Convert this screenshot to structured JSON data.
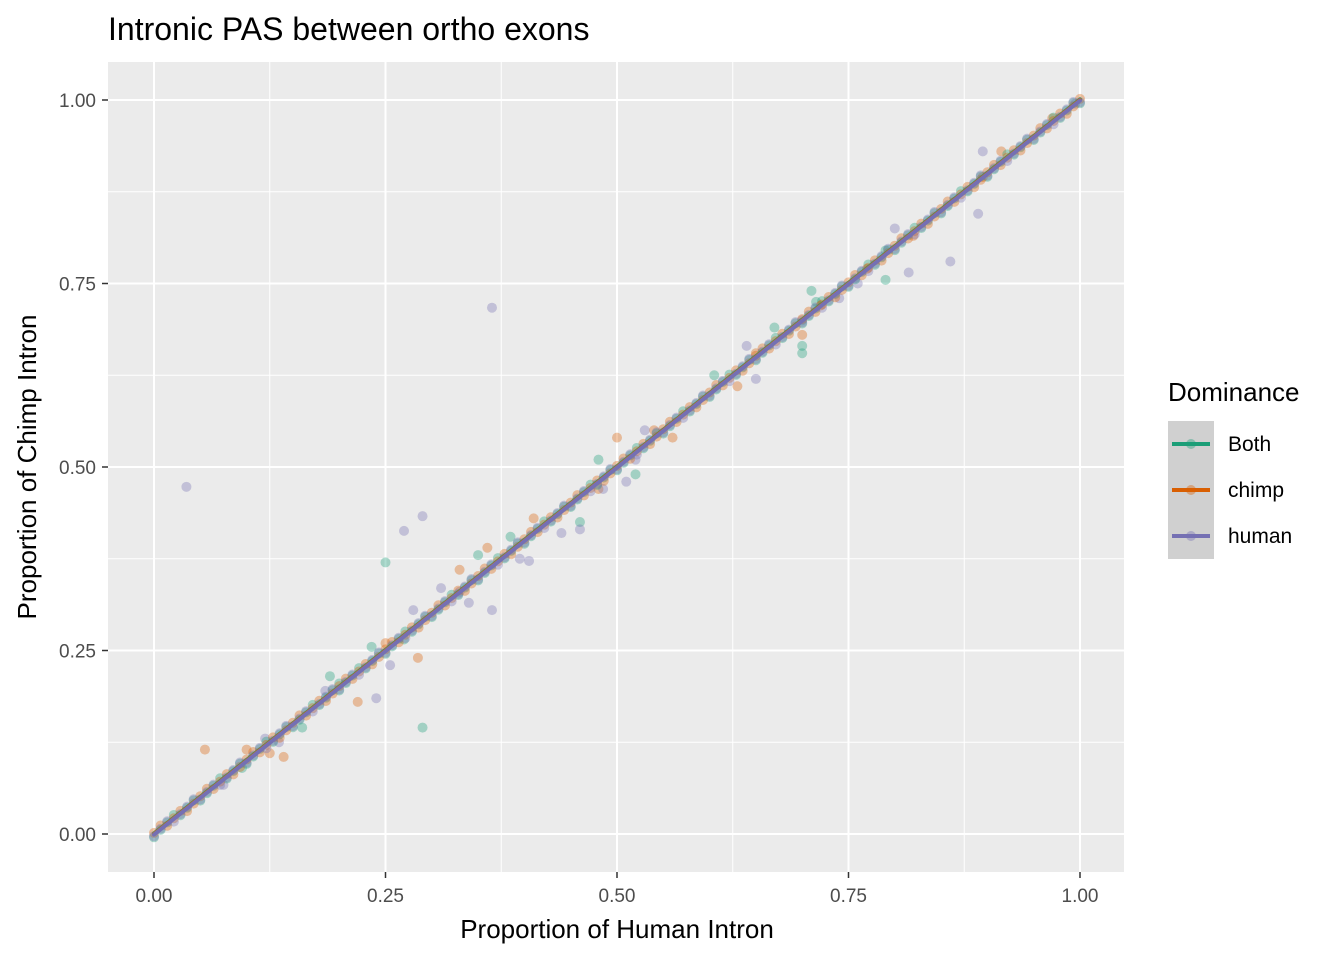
{
  "chart_data": {
    "type": "scatter",
    "title": "Intronic PAS between ortho exons",
    "xlabel": "Proportion of Human Intron",
    "ylabel": "Proportion of Chimp Intron",
    "xlim": [
      -0.1,
      1.1
    ],
    "ylim": [
      -0.05,
      1.05
    ],
    "xticks": [
      0,
      0.25,
      0.5,
      0.75,
      1
    ],
    "yticks": [
      0,
      0.25,
      0.5,
      0.75,
      1
    ],
    "xtick_labels": [
      "0.00",
      "0.25",
      "0.50",
      "0.75",
      "1.00"
    ],
    "ytick_labels": [
      "0.00",
      "0.25",
      "0.50",
      "0.75",
      "1.00"
    ],
    "grid": true,
    "legend": {
      "title": "Dominance",
      "position": "right",
      "entries": [
        "Both",
        "chimp",
        "human"
      ]
    },
    "series": [
      {
        "name": "Both",
        "color": "#1B9E77",
        "fit_line": {
          "x": [
            0,
            1
          ],
          "y": [
            0,
            1
          ]
        },
        "outliers": [
          [
            0.25,
            0.37
          ],
          [
            0.29,
            0.145
          ],
          [
            0.35,
            0.38
          ],
          [
            0.48,
            0.51
          ],
          [
            0.52,
            0.49
          ],
          [
            0.46,
            0.425
          ],
          [
            0.605,
            0.625
          ],
          [
            0.7,
            0.665
          ],
          [
            0.7,
            0.655
          ],
          [
            0.71,
            0.74
          ],
          [
            0.715,
            0.725
          ],
          [
            0.67,
            0.69
          ],
          [
            0.235,
            0.255
          ],
          [
            0.27,
            0.265
          ],
          [
            0.2,
            0.205
          ],
          [
            0.19,
            0.215
          ],
          [
            0.79,
            0.795
          ],
          [
            0.79,
            0.755
          ],
          [
            0.385,
            0.405
          ],
          [
            0.095,
            0.09
          ],
          [
            0.16,
            0.145
          ]
        ]
      },
      {
        "name": "chimp",
        "color": "#D95F02",
        "fit_line": {
          "x": [
            0,
            1
          ],
          "y": [
            0,
            1
          ]
        },
        "outliers": [
          [
            0.055,
            0.115
          ],
          [
            0.14,
            0.105
          ],
          [
            0.22,
            0.18
          ],
          [
            0.285,
            0.24
          ],
          [
            0.25,
            0.26
          ],
          [
            0.33,
            0.36
          ],
          [
            0.36,
            0.39
          ],
          [
            0.41,
            0.43
          ],
          [
            0.5,
            0.54
          ],
          [
            0.54,
            0.55
          ],
          [
            0.63,
            0.61
          ],
          [
            0.7,
            0.68
          ],
          [
            0.77,
            0.77
          ],
          [
            0.82,
            0.815
          ],
          [
            0.895,
            0.895
          ],
          [
            0.1,
            0.115
          ],
          [
            0.48,
            0.47
          ],
          [
            0.56,
            0.54
          ],
          [
            0.65,
            0.655
          ],
          [
            0.72,
            0.72
          ],
          [
            0.915,
            0.93
          ],
          [
            0.97,
            0.975
          ],
          [
            0.125,
            0.11
          ]
        ]
      },
      {
        "name": "human",
        "color": "#7570B3",
        "fit_line": {
          "x": [
            0,
            1
          ],
          "y": [
            0,
            1
          ]
        },
        "outliers": [
          [
            0.035,
            0.473
          ],
          [
            0.365,
            0.717
          ],
          [
            0.27,
            0.413
          ],
          [
            0.29,
            0.433
          ],
          [
            0.24,
            0.185
          ],
          [
            0.365,
            0.305
          ],
          [
            0.34,
            0.315
          ],
          [
            0.31,
            0.335
          ],
          [
            0.28,
            0.305
          ],
          [
            0.255,
            0.23
          ],
          [
            0.395,
            0.375
          ],
          [
            0.405,
            0.372
          ],
          [
            0.46,
            0.415
          ],
          [
            0.51,
            0.48
          ],
          [
            0.485,
            0.47
          ],
          [
            0.44,
            0.41
          ],
          [
            0.53,
            0.55
          ],
          [
            0.64,
            0.665
          ],
          [
            0.65,
            0.62
          ],
          [
            0.7,
            0.7
          ],
          [
            0.76,
            0.75
          ],
          [
            0.8,
            0.825
          ],
          [
            0.815,
            0.765
          ],
          [
            0.86,
            0.78
          ],
          [
            0.895,
            0.93
          ],
          [
            0.89,
            0.845
          ],
          [
            0.995,
            0.995
          ],
          [
            0.12,
            0.13
          ],
          [
            0.135,
            0.125
          ],
          [
            0.075,
            0.067
          ],
          [
            0.185,
            0.195
          ],
          [
            0.52,
            0.51
          ],
          [
            0.33,
            0.33
          ],
          [
            0.74,
            0.73
          ]
        ]
      }
    ]
  }
}
